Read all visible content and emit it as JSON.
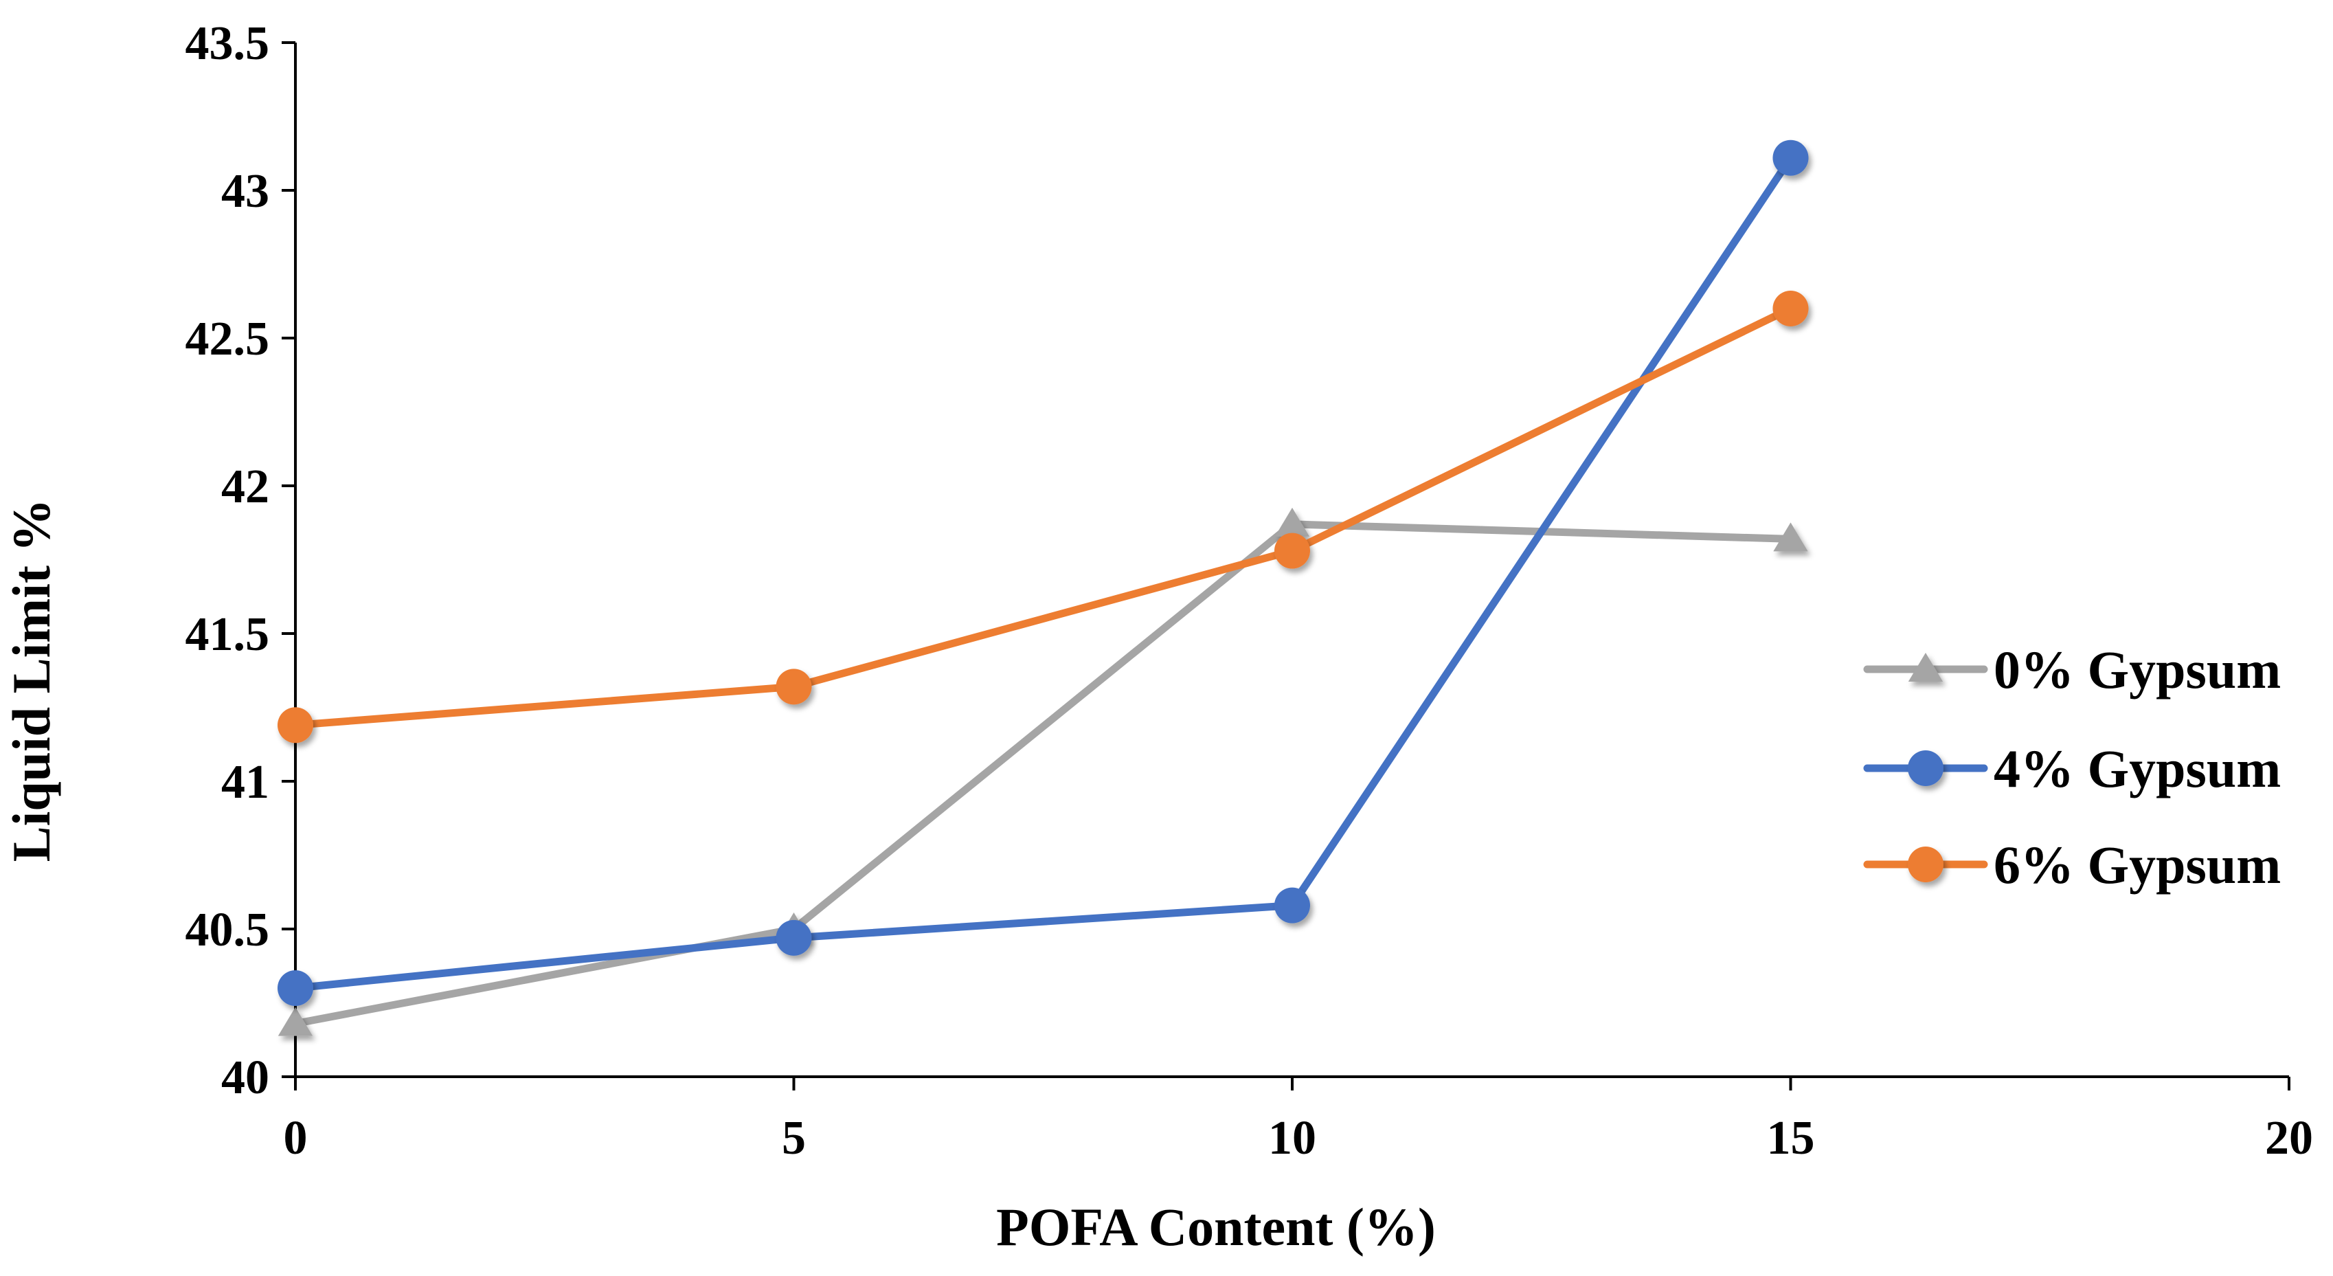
{
  "chart_data": {
    "type": "line",
    "title": "",
    "xlabel": "POFA Content (%)",
    "ylabel": "Liquid Limit %",
    "xlim": [
      0,
      20
    ],
    "ylim": [
      40,
      43.5
    ],
    "xticks": [
      0,
      5,
      10,
      15,
      20
    ],
    "xtick_labels": [
      "0",
      "5",
      "10",
      "15",
      "20"
    ],
    "yticks": [
      40,
      40.5,
      41,
      41.5,
      42,
      42.5,
      43,
      43.5
    ],
    "ytick_labels": [
      "40",
      "40.5",
      "41",
      "41.5",
      "42",
      "42.5",
      "43",
      "43.5"
    ],
    "grid": false,
    "legend_position": "right",
    "series": [
      {
        "name": "0% Gypsum",
        "marker": "triangle",
        "color": "#A5A5A5",
        "x": [
          0,
          5,
          10,
          15
        ],
        "values": [
          40.18,
          40.5,
          41.87,
          41.82
        ]
      },
      {
        "name": "4% Gypsum",
        "marker": "circle",
        "color": "#4472C4",
        "x": [
          0,
          5,
          10,
          15
        ],
        "values": [
          40.3,
          40.47,
          40.58,
          43.11
        ]
      },
      {
        "name": "6% Gypsum",
        "marker": "circle",
        "color": "#ED7D31",
        "x": [
          0,
          5,
          10,
          15
        ],
        "values": [
          41.19,
          41.32,
          41.78,
          42.6
        ]
      }
    ]
  }
}
